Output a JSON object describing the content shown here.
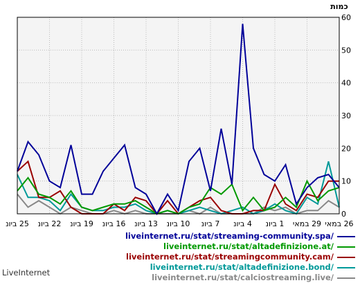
{
  "footer": "LiveInternet",
  "chart_data": {
    "type": "line",
    "unit_label": "כמות",
    "ylim": [
      0,
      60
    ],
    "yticks": [
      0,
      10,
      20,
      30,
      40,
      50,
      60
    ],
    "grid": true,
    "x_axis": "reversed (newest on left)",
    "xtick_labels": [
      "25 ביונ",
      "22 ביונ",
      "19 ביונ",
      "16 ביונ",
      "13 ביונ",
      "10 ביונ",
      "7 ביונ",
      "4 ביונ",
      "1 ביונ",
      "29 במאי",
      "26 במאי"
    ],
    "series": [
      {
        "name": "liveinternet.ru/stat/streaming-community.spa/",
        "color": "#000099",
        "values": [
          13,
          22,
          18,
          10,
          8,
          21,
          6,
          6,
          13,
          17,
          21,
          8,
          6,
          0,
          6,
          1,
          16,
          20,
          7,
          26,
          9,
          58,
          20,
          12,
          10,
          15,
          3,
          8,
          11,
          12,
          8
        ]
      },
      {
        "name": "liveinternet.ru/stat/altadefinizione.at/",
        "color": "#009900",
        "values": [
          7,
          11,
          6,
          5,
          3,
          7,
          2,
          1,
          2,
          3,
          3,
          4,
          2,
          0,
          1,
          0,
          2,
          3,
          8,
          6,
          9,
          1,
          5,
          1,
          2,
          5,
          2,
          10,
          4,
          7,
          8
        ]
      },
      {
        "name": "liveinternet.ru/stat/streamingcommunity.cam/",
        "color": "#990000",
        "values": [
          13,
          16,
          5,
          5,
          7,
          2,
          0,
          0,
          0,
          3,
          1,
          5,
          4,
          0,
          4,
          0,
          2,
          4,
          5,
          1,
          0,
          0,
          1,
          1,
          9,
          3,
          1,
          6,
          5,
          10,
          10
        ]
      },
      {
        "name": "liveinternet.ru/stat/altadefinizione.bond/",
        "color": "#009999",
        "values": [
          12,
          5,
          5,
          4,
          1,
          6,
          2,
          1,
          1,
          2,
          2,
          3,
          1,
          0,
          1,
          0,
          1,
          2,
          1,
          0,
          1,
          2,
          0,
          1,
          3,
          1,
          0,
          5,
          3,
          16,
          2
        ]
      },
      {
        "name": "liveinternet.ru/stat/calciostreaming.live/",
        "color": "#888888",
        "values": [
          6,
          2,
          4,
          2,
          0,
          2,
          1,
          0,
          0,
          1,
          0,
          1,
          0,
          0,
          0,
          0,
          1,
          0,
          2,
          0,
          0,
          0,
          0,
          2,
          1,
          2,
          0,
          1,
          1,
          4,
          2
        ]
      }
    ]
  }
}
